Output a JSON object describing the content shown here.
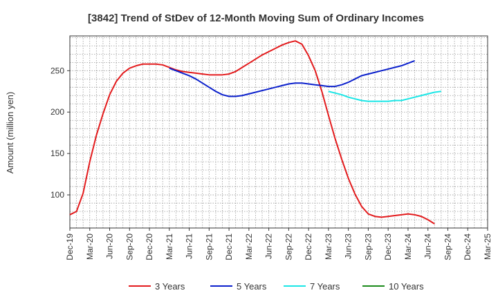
{
  "chart_data": {
    "type": "line",
    "title": "[3842]  Trend of StDev of 12-Month Moving Sum of Ordinary Incomes",
    "ylabel": "Amount (million yen)",
    "xlabel": "",
    "x_ticks": [
      "Dec-19",
      "Mar-20",
      "Jun-20",
      "Sep-20",
      "Dec-20",
      "Mar-21",
      "Jun-21",
      "Sep-21",
      "Dec-21",
      "Mar-22",
      "Jun-22",
      "Sep-22",
      "Dec-22",
      "Mar-23",
      "Jun-23",
      "Sep-23",
      "Dec-23",
      "Mar-24",
      "Jun-24",
      "Sep-24",
      "Dec-24",
      "Mar-25"
    ],
    "y_ticks": [
      100,
      150,
      200,
      250
    ],
    "ylim": [
      60,
      292
    ],
    "grid": true,
    "legend_position": "bottom",
    "series": [
      {
        "name": "3 Years",
        "color": "#e31a1c",
        "start": "Dec-19",
        "values": [
          76,
          80,
          102,
          140,
          172,
          198,
          221,
          237,
          247,
          253,
          256,
          258,
          258,
          258,
          257,
          254,
          251,
          249,
          248,
          247,
          246,
          245,
          245,
          245,
          246,
          249,
          254,
          259,
          264,
          269,
          273,
          277,
          281,
          284,
          286,
          282,
          268,
          250,
          225,
          196,
          168,
          143,
          120,
          101,
          86,
          77,
          74,
          73,
          74,
          75,
          76,
          77,
          76,
          74,
          70,
          65
        ]
      },
      {
        "name": "5 Years",
        "color": "#0a1fcc",
        "start": "Mar-21",
        "values": [
          253,
          250,
          247,
          244,
          240,
          235,
          230,
          225,
          221,
          219,
          219,
          220,
          222,
          224,
          226,
          228,
          230,
          232,
          234,
          235,
          235,
          234,
          233,
          232,
          231,
          231,
          233,
          236,
          240,
          244,
          246,
          248,
          250,
          252,
          254,
          256,
          259,
          262
        ]
      },
      {
        "name": "7 Years",
        "color": "#19e6e6",
        "start": "Mar-23",
        "values": [
          225,
          223,
          221,
          218,
          216,
          214,
          213,
          213,
          213,
          213,
          214,
          214,
          216,
          218,
          220,
          222,
          224,
          225
        ]
      },
      {
        "name": "10 Years",
        "color": "#1a8a1a",
        "start": "Mar-23",
        "values": []
      }
    ]
  }
}
